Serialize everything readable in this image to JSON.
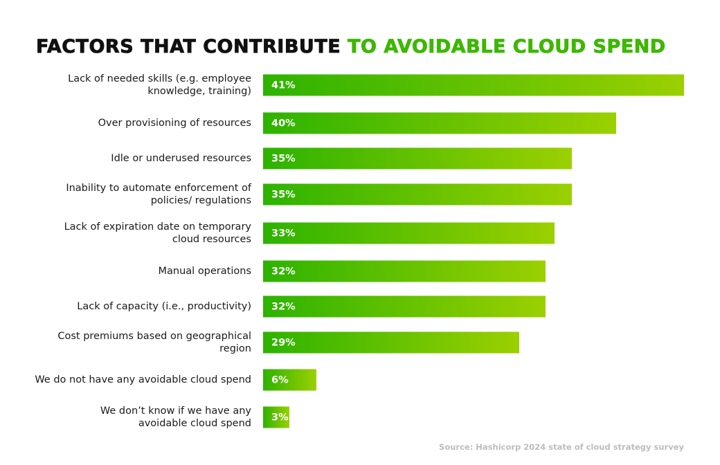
{
  "chart_data": {
    "type": "bar",
    "orientation": "horizontal",
    "title_part1": "FACTORS THAT CONTRIBUTE",
    "title_part2": "TO AVOIDABLE CLOUD SPEND",
    "categories": [
      "Lack of needed skills (e.g. employee\nknowledge, training)",
      "Over provisioning of resources",
      "Idle or underused resources",
      "Inability to automate enforcement of\npolicies/ regulations",
      "Lack of expiration date on temporary\ncloud resources",
      "Manual operations",
      "Lack of capacity (i.e., productivity)",
      "Cost premiums based on geographical\nregion",
      "We do not have any avoidable cloud spend",
      "We don’t know if we have any\navoidable cloud spend"
    ],
    "values": [
      41,
      40,
      35,
      35,
      33,
      32,
      32,
      29,
      6,
      3
    ],
    "value_labels": [
      "41%",
      "40%",
      "35%",
      "35%",
      "33%",
      "32%",
      "32%",
      "29%",
      "6%",
      "3%"
    ],
    "unit": "%",
    "source": "Source: Hashicorp 2024 state of cloud strategy survey",
    "colors": {
      "title": "#111111",
      "title_highlight": "#3cb800",
      "bar_start": "#2db300",
      "bar_end": "#9bd000",
      "value_text": "#ffffff",
      "source": "#bdbdbd"
    },
    "grid": false
  }
}
